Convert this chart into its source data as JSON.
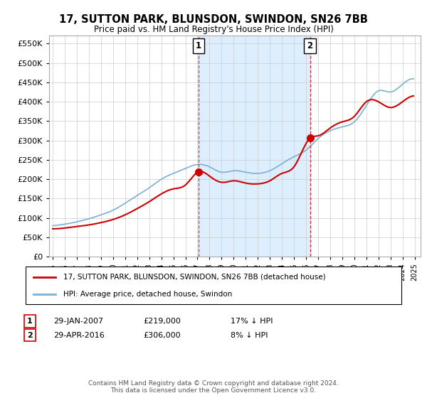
{
  "title": "17, SUTTON PARK, BLUNSDON, SWINDON, SN26 7BB",
  "subtitle": "Price paid vs. HM Land Registry's House Price Index (HPI)",
  "legend_red": "17, SUTTON PARK, BLUNSDON, SWINDON, SN26 7BB (detached house)",
  "legend_blue": "HPI: Average price, detached house, Swindon",
  "footnote": "Contains HM Land Registry data © Crown copyright and database right 2024.\nThis data is licensed under the Open Government Licence v3.0.",
  "purchase1_date": "29-JAN-2007",
  "purchase1_price": "£219,000",
  "purchase1_hpi": "17% ↓ HPI",
  "purchase1_year": 2007.08,
  "purchase1_value": 219000,
  "purchase2_date": "29-APR-2016",
  "purchase2_price": "£306,000",
  "purchase2_hpi": "8% ↓ HPI",
  "purchase2_year": 2016.33,
  "purchase2_value": 306000,
  "red_color": "#cc0000",
  "blue_color": "#7ab0d4",
  "shade_color": "#ddeeff",
  "grid_color": "#cccccc",
  "bg_color": "#f0f5ff",
  "ylim_min": 0,
  "ylim_max": 570000,
  "ytick_step": 50000,
  "xmin": 1995.0,
  "xmax": 2025.5
}
